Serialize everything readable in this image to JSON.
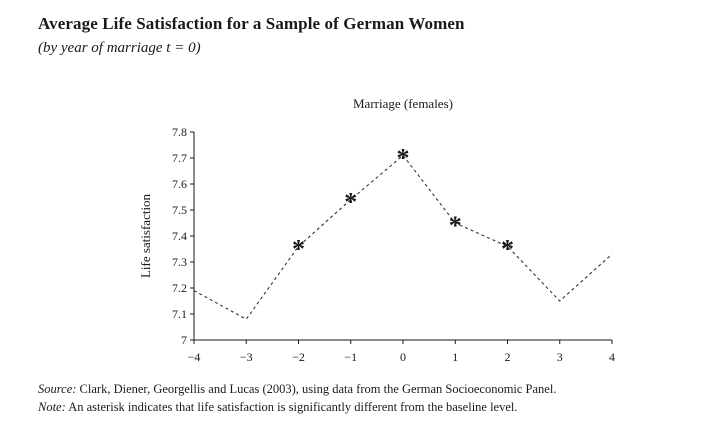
{
  "figure": {
    "title": "Average Life Satisfaction for a Sample of German Women",
    "subtitle": "(by year of marriage t = 0)"
  },
  "chart_data": {
    "type": "line",
    "title": "Marriage (females)",
    "xlabel": "",
    "ylabel": "Life satisfaction",
    "x": [
      -4,
      -3,
      -2,
      -1,
      0,
      1,
      2,
      3,
      4
    ],
    "x_tick_labels": [
      "−4",
      "−3",
      "−2",
      "−1",
      "0",
      "1",
      "2",
      "3",
      "4"
    ],
    "y_ticks": [
      7,
      7.1,
      7.2,
      7.3,
      7.4,
      7.5,
      7.6,
      7.7,
      7.8
    ],
    "xlim": [
      -4,
      4
    ],
    "ylim": [
      7,
      7.8
    ],
    "grid": false,
    "line_style": "dashed",
    "series": [
      {
        "values": [
          7.19,
          7.08,
          7.36,
          7.54,
          7.71,
          7.45,
          7.36,
          7.15,
          7.33
        ],
        "significant": [
          false,
          false,
          true,
          true,
          true,
          true,
          true,
          false,
          false
        ]
      }
    ],
    "marker_symbol": "*"
  },
  "notes": {
    "source_lead": "Source:",
    "source_text": " Clark, Diener, Georgellis and Lucas (2003), using data from the German Socioeconomic Panel.",
    "note_lead": "Note:",
    "note_text": " An asterisk indicates that life satisfaction is significantly different from the baseline level."
  }
}
